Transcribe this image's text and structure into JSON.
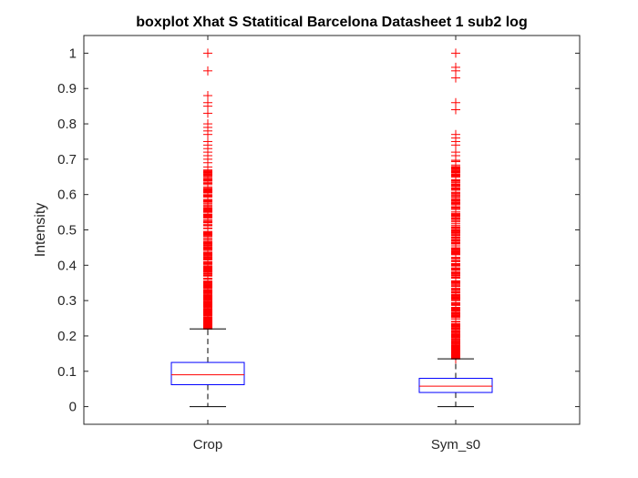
{
  "chart_data": {
    "type": "box",
    "title": "boxplot Xhat S Statitical Barcelona Datasheet 1 sub2 log",
    "xlabel": "",
    "ylabel": "Intensity",
    "ylim": [
      -0.05,
      1.05
    ],
    "yticks": [
      0,
      0.1,
      0.2,
      0.3,
      0.4,
      0.5,
      0.6,
      0.7,
      0.8,
      0.9,
      1
    ],
    "ytick_labels": [
      "0",
      "0.1",
      "0.2",
      "0.3",
      "0.4",
      "0.5",
      "0.6",
      "0.7",
      "0.8",
      "0.9",
      "1"
    ],
    "categories": [
      "Crop",
      "Sym_s0"
    ],
    "grid": false,
    "boxes": [
      {
        "category": "Crop",
        "whisker_low": 0.0,
        "q1": 0.062,
        "median": 0.09,
        "q3": 0.125,
        "whisker_high": 0.22,
        "outlier_range": [
          0.22,
          0.68
        ],
        "outliers": [
          0.69,
          0.7,
          0.71,
          0.72,
          0.73,
          0.74,
          0.75,
          0.77,
          0.78,
          0.79,
          0.8,
          0.83,
          0.85,
          0.86,
          0.88,
          0.95,
          1.0
        ]
      },
      {
        "category": "Sym_s0",
        "whisker_low": 0.0,
        "q1": 0.04,
        "median": 0.058,
        "q3": 0.08,
        "whisker_high": 0.135,
        "outlier_range": [
          0.135,
          0.7
        ],
        "outliers": [
          0.71,
          0.72,
          0.74,
          0.75,
          0.76,
          0.77,
          0.84,
          0.86,
          0.93,
          0.95,
          0.96,
          1.0
        ]
      }
    ],
    "colors": {
      "box": "#0000ff",
      "median": "#ff0000",
      "whisker": "#000000",
      "outlier": "#ff0000",
      "axes": "#262626"
    }
  }
}
